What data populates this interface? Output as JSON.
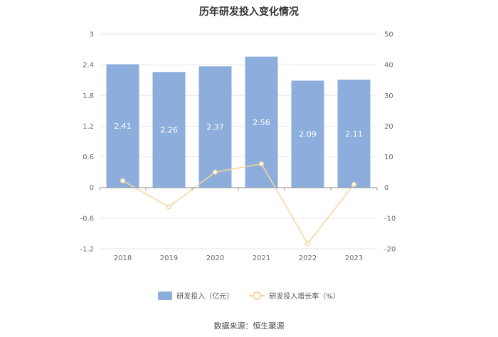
{
  "chart_data": {
    "type": "bar",
    "title": "历年研发投入变化情况",
    "categories": [
      "2018",
      "2019",
      "2020",
      "2021",
      "2022",
      "2023"
    ],
    "series": [
      {
        "name": "研发投入（亿元）",
        "type": "bar",
        "axis": "left",
        "values": [
          2.41,
          2.26,
          2.37,
          2.56,
          2.09,
          2.11
        ],
        "color": "#8daedc",
        "data_labels": [
          "2.41",
          "2.26",
          "2.37",
          "2.56",
          "2.09",
          "2.11"
        ]
      },
      {
        "name": "研发投入增长率（%）",
        "type": "line",
        "axis": "right",
        "values": [
          2.2,
          -6.3,
          5.0,
          7.7,
          -18.3,
          1.0
        ],
        "color": "#f7d59b"
      }
    ],
    "y_left": {
      "range": [
        -1.2,
        3
      ],
      "ticks": [
        "3",
        "2.4",
        "1.8",
        "1.2",
        "0.6",
        "0",
        "-0.6",
        "-1.2"
      ]
    },
    "y_right": {
      "range": [
        -20,
        50
      ],
      "ticks": [
        "50",
        "40",
        "30",
        "20",
        "10",
        "0",
        "-10",
        "-20"
      ]
    },
    "grid": true,
    "legend_position": "bottom"
  },
  "source_text": "数据来源：恒生聚源"
}
